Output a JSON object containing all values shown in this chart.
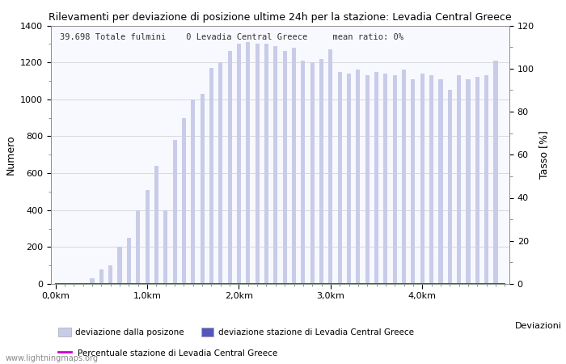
{
  "title": "Rilevamenti per deviazione di posizione ultime 24h per la stazione: Levadia Central Greece",
  "subtitle": "39.698 Totale fulmini    0 Levadia Central Greece     mean ratio: 0%",
  "xlabel": "Deviazioni",
  "ylabel_left": "Numero",
  "ylabel_right": "Tasso [%]",
  "bar_color_main": "#c8cce8",
  "bar_color_station": "#5555bb",
  "line_color": "#cc00cc",
  "background_color": "#ffffff",
  "plot_bg_color": "#f8f8ff",
  "ylim_left": [
    0,
    1400
  ],
  "ylim_right": [
    0,
    120
  ],
  "xtick_labels": [
    "0,0km",
    "1,0km",
    "2,0km",
    "3,0km",
    "4,0km"
  ],
  "xtick_positions": [
    0,
    10,
    20,
    30,
    40
  ],
  "legend_labels": [
    "deviazione dalla posizone",
    "deviazione stazione di Levadia Central Greece",
    "Percentuale stazione di Levadia Central Greece"
  ],
  "watermark": "www.lightningmaps.org",
  "bar_values": [
    0,
    0,
    0,
    0,
    30,
    80,
    100,
    200,
    250,
    400,
    510,
    640,
    400,
    780,
    900,
    1000,
    1030,
    1170,
    1200,
    1260,
    1300,
    1310,
    1300,
    1300,
    1290,
    1260,
    1280,
    1210,
    1200,
    1220,
    1270,
    1150,
    1140,
    1160,
    1130,
    1150,
    1140,
    1130,
    1160,
    1110,
    1140,
    1130,
    1110,
    1050,
    1130,
    1110,
    1120,
    1130,
    1210,
    0
  ],
  "station_values": [
    0,
    0,
    0,
    0,
    0,
    0,
    0,
    0,
    0,
    0,
    0,
    0,
    0,
    0,
    0,
    0,
    0,
    0,
    0,
    0,
    0,
    0,
    0,
    0,
    0,
    0,
    0,
    0,
    0,
    0,
    0,
    0,
    0,
    0,
    0,
    0,
    0,
    0,
    0,
    0,
    0,
    0,
    0,
    0,
    0,
    0,
    0,
    0,
    0,
    0
  ],
  "percentage_values": [
    0,
    0,
    0,
    0,
    0,
    0,
    0,
    0,
    0,
    0,
    0,
    0,
    0,
    0,
    0,
    0,
    0,
    0,
    0,
    0,
    0,
    0,
    0,
    0,
    0,
    0,
    0,
    0,
    0,
    0,
    0,
    0,
    0,
    0,
    0,
    0,
    0,
    0,
    0,
    0,
    0,
    0,
    0,
    0,
    0,
    0,
    0,
    0,
    0,
    0
  ]
}
